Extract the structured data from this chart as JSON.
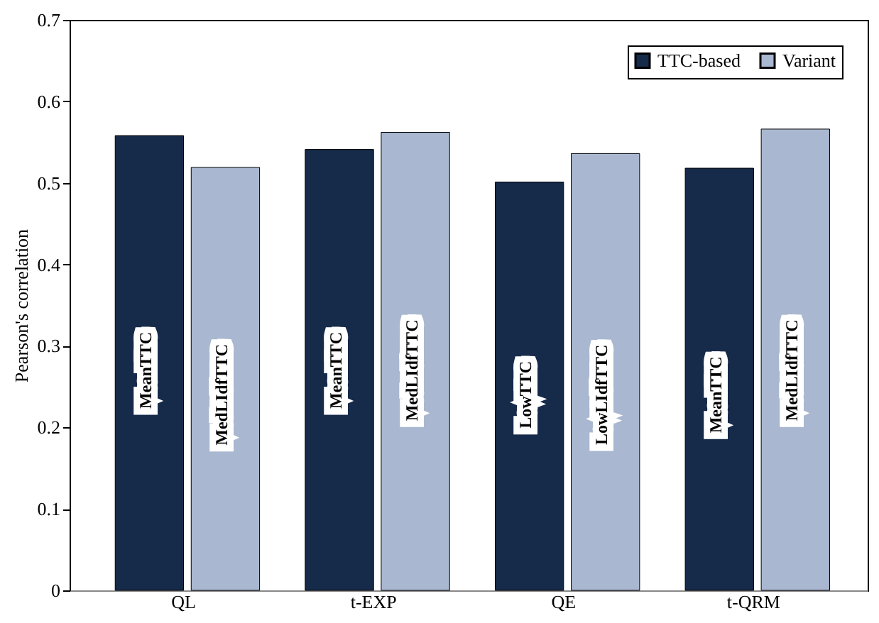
{
  "chart_data": {
    "type": "bar",
    "ylabel": "Pearson's correlation",
    "categories": [
      "QL",
      "t-EXP",
      "QE",
      "t-QRM"
    ],
    "series": [
      {
        "name": "TTC-based",
        "color": "#162a4a",
        "values": [
          0.558,
          0.541,
          0.501,
          0.518
        ]
      },
      {
        "name": "Variant",
        "color": "#a9b7d0",
        "values": [
          0.519,
          0.562,
          0.536,
          0.566
        ]
      }
    ],
    "ylim": [
      0,
      0.7
    ],
    "yticks": [
      0,
      0.1,
      0.2,
      0.3,
      0.4,
      0.5,
      0.6,
      0.7
    ],
    "grid": false,
    "legend": "top right",
    "annotations": [
      {
        "text": "MeanTTC",
        "x": "QL",
        "y": 0.27
      },
      {
        "text": "MedLIdfTTC",
        "x": "QL",
        "y": 0.24
      },
      {
        "text": "MeanTTC",
        "x": "t-EXP",
        "y": 0.27
      },
      {
        "text": "MedLIdfTTC",
        "x": "t-EXP",
        "y": 0.27
      },
      {
        "text": "LowTTC",
        "x": "QE",
        "y": 0.24
      },
      {
        "text": "LowLIdfTTC",
        "x": "QE",
        "y": 0.24
      },
      {
        "text": "MeanTTC",
        "x": "t-QRM",
        "y": 0.24
      },
      {
        "text": "MedLIdfTTC",
        "x": "t-QRM",
        "y": 0.27
      }
    ]
  }
}
